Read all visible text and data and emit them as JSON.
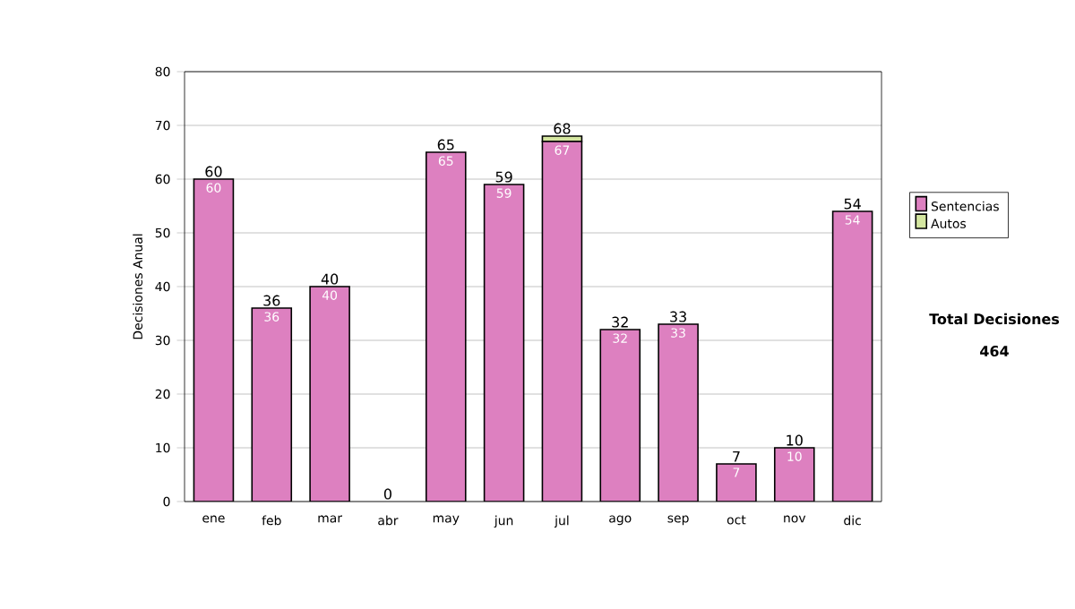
{
  "chart_data": {
    "type": "bar",
    "stacked": true,
    "ylabel": "Decisiones Anual",
    "categories": [
      "ene",
      "feb",
      "mar",
      "abr",
      "may",
      "jun",
      "jul",
      "ago",
      "sep",
      "oct",
      "nov",
      "dic"
    ],
    "series": [
      {
        "name": "Sentencias",
        "color": "#dd80c0",
        "values": [
          60,
          36,
          40,
          0,
          65,
          59,
          67,
          32,
          33,
          7,
          10,
          54
        ],
        "value_labels": [
          "60",
          "36",
          "40",
          null,
          "65",
          "59",
          "67",
          "32",
          "33",
          "7",
          "10",
          "54"
        ]
      },
      {
        "name": "Autos",
        "color": "#d4e6a0",
        "values": [
          0,
          0,
          0,
          0,
          0,
          0,
          1,
          0,
          0,
          0,
          0,
          0
        ]
      }
    ],
    "totals": [
      "60",
      "36",
      "40",
      "0",
      "65",
      "59",
      "68",
      "32",
      "33",
      "7",
      "10",
      "54"
    ],
    "ylim": [
      0,
      80
    ],
    "yticks": [
      0,
      10,
      20,
      30,
      40,
      50,
      60,
      70,
      80
    ],
    "grid": "y",
    "legend": "right",
    "annotations": [
      "Total Decisiones",
      "464"
    ]
  }
}
